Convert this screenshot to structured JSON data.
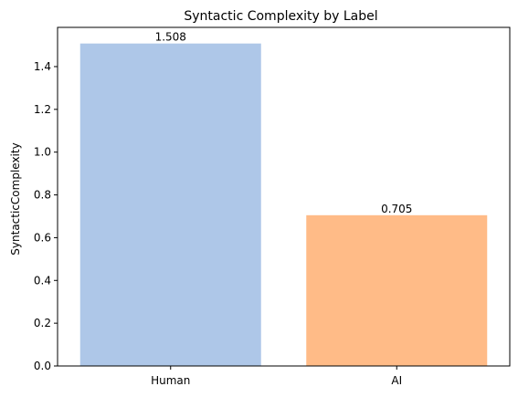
{
  "chart_data": {
    "type": "bar",
    "title": "Syntactic Complexity by Label",
    "xlabel": "",
    "ylabel": "SyntacticComplexity",
    "categories": [
      "Human",
      "AI"
    ],
    "values": [
      1.508,
      0.705
    ],
    "data_labels": [
      "1.508",
      "0.705"
    ],
    "colors": [
      "#aec7e8",
      "#ffbb87"
    ],
    "ylim": [
      0,
      1.5834
    ],
    "yticks": [
      0.0,
      0.2,
      0.4,
      0.6,
      0.8,
      1.0,
      1.2,
      1.4
    ],
    "ytick_labels": [
      "0.0",
      "0.2",
      "0.4",
      "0.6",
      "0.8",
      "1.0",
      "1.2",
      "1.4"
    ],
    "grid": false,
    "legend": "none"
  }
}
